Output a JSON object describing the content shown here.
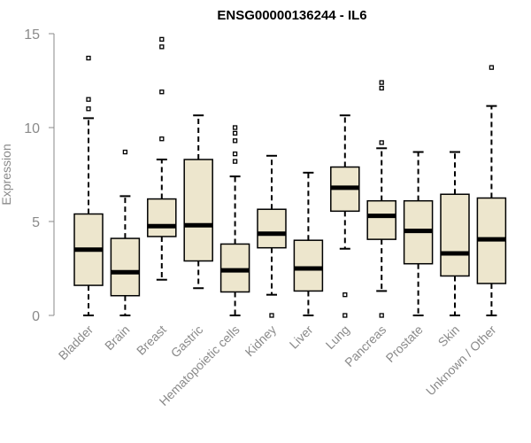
{
  "chart_data": {
    "type": "boxplot",
    "title": "ENSG00000136244 - IL6",
    "xlabel": "",
    "ylabel": "Expression",
    "ylim": [
      0,
      15
    ],
    "yticks": [
      0,
      5,
      10,
      15
    ],
    "box_fill": "#ede6cd",
    "categories": [
      "Bladder",
      "Brain",
      "Breast",
      "Gastric",
      "Hematopoietic cells",
      "Kidney",
      "Liver",
      "Lung",
      "Pancreas",
      "Prostate",
      "Skin",
      "Unknown / Other"
    ],
    "boxes": [
      {
        "name": "Bladder",
        "whisker_low": 0.0,
        "q1": 1.6,
        "median": 3.5,
        "q3": 5.4,
        "whisker_high": 10.5,
        "outliers": [
          11.0,
          11.5,
          13.7
        ]
      },
      {
        "name": "Brain",
        "whisker_low": 0.0,
        "q1": 1.05,
        "median": 2.3,
        "q3": 4.1,
        "whisker_high": 6.35,
        "outliers": [
          8.7
        ]
      },
      {
        "name": "Breast",
        "whisker_low": 1.9,
        "q1": 4.2,
        "median": 4.75,
        "q3": 6.2,
        "whisker_high": 8.3,
        "outliers": [
          9.4,
          11.9,
          14.3,
          14.7
        ]
      },
      {
        "name": "Gastric",
        "whisker_low": 1.45,
        "q1": 2.9,
        "median": 4.8,
        "q3": 8.3,
        "whisker_high": 10.65,
        "outliers": []
      },
      {
        "name": "Hematopoietic cells",
        "whisker_low": 0.0,
        "q1": 1.25,
        "median": 2.4,
        "q3": 3.8,
        "whisker_high": 7.4,
        "outliers": [
          8.2,
          8.6,
          9.3,
          9.7,
          10.0
        ]
      },
      {
        "name": "Kidney",
        "whisker_low": 1.1,
        "q1": 3.6,
        "median": 4.35,
        "q3": 5.65,
        "whisker_high": 8.5,
        "outliers": [
          0.0
        ]
      },
      {
        "name": "Liver",
        "whisker_low": 0.0,
        "q1": 1.3,
        "median": 2.5,
        "q3": 4.0,
        "whisker_high": 7.6,
        "outliers": []
      },
      {
        "name": "Lung",
        "whisker_low": 3.55,
        "q1": 5.55,
        "median": 6.8,
        "q3": 7.9,
        "whisker_high": 10.65,
        "outliers": [
          0.0,
          1.1
        ]
      },
      {
        "name": "Pancreas",
        "whisker_low": 1.3,
        "q1": 4.05,
        "median": 5.3,
        "q3": 6.1,
        "whisker_high": 8.9,
        "outliers": [
          0.0,
          9.2,
          12.1,
          12.4
        ]
      },
      {
        "name": "Prostate",
        "whisker_low": 0.0,
        "q1": 2.75,
        "median": 4.5,
        "q3": 6.1,
        "whisker_high": 8.7,
        "outliers": []
      },
      {
        "name": "Skin",
        "whisker_low": 0.0,
        "q1": 2.1,
        "median": 3.3,
        "q3": 6.45,
        "whisker_high": 8.7,
        "outliers": []
      },
      {
        "name": "Unknown / Other",
        "whisker_low": 0.0,
        "q1": 1.7,
        "median": 4.05,
        "q3": 6.25,
        "whisker_high": 11.15,
        "outliers": [
          13.2
        ]
      }
    ]
  }
}
